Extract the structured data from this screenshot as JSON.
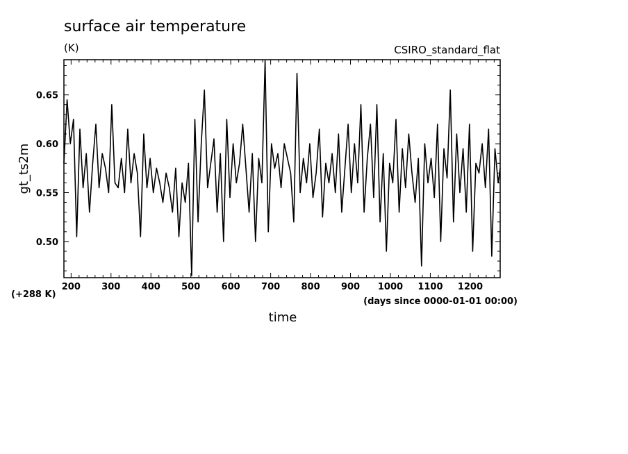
{
  "chart_data": {
    "type": "line",
    "title": "surface air temperature",
    "units": "(K)",
    "experiment": "CSIRO_standard_flat",
    "xlabel": "time",
    "x_units": "(days since 0000-01-01 00:00)",
    "ylabel": "gt_ts2m",
    "y_offset_label": "(+288 K)",
    "xlim": [
      182,
      1275
    ],
    "ylim": [
      0.463,
      0.686
    ],
    "x_ticks": [
      200,
      300,
      400,
      500,
      600,
      700,
      800,
      900,
      1000,
      1100,
      1200
    ],
    "x_tick_labels": [
      "200",
      "300",
      "400",
      "500",
      "600",
      "700",
      "800",
      "900",
      "1000",
      "1100",
      "1200"
    ],
    "y_ticks": [
      0.5,
      0.55,
      0.6,
      0.65
    ],
    "y_tick_labels": [
      "0.50",
      "0.55",
      "0.60",
      "0.65"
    ],
    "grid": false,
    "series": [
      {
        "x": [
          182,
          190,
          198,
          206,
          214,
          222,
          230,
          238,
          246,
          254,
          262,
          270,
          278,
          286,
          294,
          302,
          310,
          318,
          326,
          334,
          342,
          350,
          358,
          366,
          374,
          382,
          390,
          398,
          406,
          414,
          422,
          430,
          438,
          446,
          454,
          462,
          470,
          478,
          486,
          494,
          502,
          510,
          518,
          526,
          534,
          542,
          550,
          558,
          566,
          574,
          582,
          590,
          598,
          606,
          614,
          622,
          630,
          638,
          646,
          654,
          662,
          670,
          678,
          686,
          694,
          702,
          710,
          718,
          726,
          734,
          742,
          750,
          758,
          766,
          774,
          782,
          790,
          798,
          806,
          814,
          822,
          830,
          838,
          846,
          854,
          862,
          870,
          878,
          886,
          894,
          902,
          910,
          918,
          926,
          934,
          942,
          950,
          958,
          966,
          974,
          982,
          990,
          998,
          1006,
          1014,
          1022,
          1030,
          1038,
          1046,
          1054,
          1062,
          1070,
          1078,
          1086,
          1094,
          1102,
          1110,
          1118,
          1126,
          1134,
          1142,
          1150,
          1158,
          1166,
          1174,
          1182,
          1190,
          1198,
          1206,
          1214,
          1222,
          1230,
          1238,
          1246,
          1254,
          1262,
          1270,
          1275
        ],
        "values": [
          0.58,
          0.645,
          0.6,
          0.625,
          0.505,
          0.615,
          0.555,
          0.59,
          0.53,
          0.58,
          0.62,
          0.555,
          0.59,
          0.575,
          0.55,
          0.64,
          0.56,
          0.555,
          0.585,
          0.55,
          0.615,
          0.56,
          0.59,
          0.57,
          0.505,
          0.61,
          0.555,
          0.585,
          0.55,
          0.575,
          0.56,
          0.54,
          0.57,
          0.555,
          0.53,
          0.575,
          0.505,
          0.56,
          0.54,
          0.58,
          0.465,
          0.625,
          0.52,
          0.6,
          0.655,
          0.555,
          0.58,
          0.605,
          0.53,
          0.59,
          0.5,
          0.625,
          0.545,
          0.6,
          0.56,
          0.58,
          0.62,
          0.575,
          0.53,
          0.59,
          0.5,
          0.585,
          0.56,
          0.685,
          0.51,
          0.6,
          0.575,
          0.59,
          0.555,
          0.6,
          0.585,
          0.57,
          0.52,
          0.672,
          0.55,
          0.585,
          0.56,
          0.6,
          0.545,
          0.57,
          0.615,
          0.525,
          0.58,
          0.56,
          0.59,
          0.55,
          0.61,
          0.53,
          0.575,
          0.62,
          0.55,
          0.6,
          0.56,
          0.64,
          0.53,
          0.585,
          0.62,
          0.545,
          0.64,
          0.52,
          0.59,
          0.49,
          0.58,
          0.56,
          0.625,
          0.53,
          0.595,
          0.555,
          0.61,
          0.57,
          0.54,
          0.585,
          0.475,
          0.6,
          0.56,
          0.585,
          0.545,
          0.62,
          0.5,
          0.595,
          0.565,
          0.655,
          0.52,
          0.61,
          0.55,
          0.595,
          0.53,
          0.62,
          0.49,
          0.58,
          0.57,
          0.6,
          0.555,
          0.615,
          0.485,
          0.595,
          0.56,
          0.575
        ]
      }
    ]
  }
}
